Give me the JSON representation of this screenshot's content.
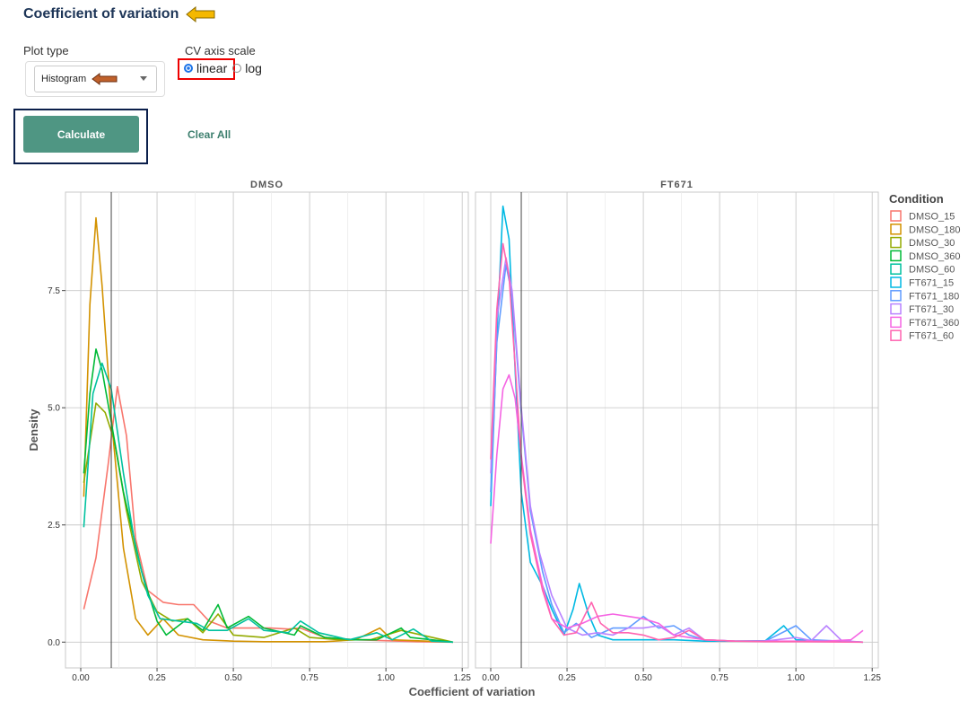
{
  "header": {
    "title": "Coefficient of variation",
    "arrow_color": "#f5b800"
  },
  "controls": {
    "plot_type_label": "Plot type",
    "plot_type_value": "Histogram",
    "plot_type_arrow_color": "#c0612b",
    "cv_scale_label": "CV axis scale",
    "cv_scale_options": [
      "linear",
      "log"
    ],
    "cv_scale_selected": "linear",
    "calculate_label": "Calculate",
    "clear_label": "Clear All"
  },
  "chart_data": {
    "type": "line",
    "title": "",
    "xlabel": "Coefficient of variation",
    "ylabel": "Density",
    "xlim": [
      -0.05,
      1.27
    ],
    "ylim": [
      -0.55,
      9.6
    ],
    "x_ticks": [
      "0.00",
      "0.25",
      "0.50",
      "0.75",
      "1.00",
      "1.25"
    ],
    "y_ticks": [
      "0.0",
      "2.5",
      "5.0",
      "7.5"
    ],
    "vline_x": 0.1,
    "legend": {
      "title": "Condition",
      "position": "right"
    },
    "panels": [
      {
        "name": "DMSO",
        "series": [
          {
            "name": "DMSO_15",
            "color": "#f8766d",
            "points": [
              [
                0.01,
                0.7
              ],
              [
                0.05,
                1.8
              ],
              [
                0.09,
                3.8
              ],
              [
                0.12,
                5.45
              ],
              [
                0.15,
                4.4
              ],
              [
                0.18,
                2.2
              ],
              [
                0.22,
                1.1
              ],
              [
                0.27,
                0.85
              ],
              [
                0.32,
                0.8
              ],
              [
                0.37,
                0.8
              ],
              [
                0.42,
                0.45
              ],
              [
                0.48,
                0.3
              ],
              [
                0.55,
                0.3
              ],
              [
                0.62,
                0.3
              ],
              [
                0.68,
                0.28
              ],
              [
                0.72,
                0.3
              ],
              [
                0.8,
                0.1
              ],
              [
                0.9,
                0.05
              ],
              [
                1.0,
                0.03
              ],
              [
                1.1,
                0.01
              ],
              [
                1.22,
                0
              ]
            ]
          },
          {
            "name": "DMSO_180",
            "color": "#d39200",
            "points": [
              [
                0.01,
                3.1
              ],
              [
                0.03,
                7.2
              ],
              [
                0.05,
                9.05
              ],
              [
                0.07,
                7.6
              ],
              [
                0.1,
                4.8
              ],
              [
                0.14,
                2.0
              ],
              [
                0.18,
                0.5
              ],
              [
                0.22,
                0.15
              ],
              [
                0.27,
                0.5
              ],
              [
                0.32,
                0.15
              ],
              [
                0.4,
                0.05
              ],
              [
                0.5,
                0.02
              ],
              [
                0.6,
                0.01
              ],
              [
                0.7,
                0.01
              ],
              [
                0.8,
                0.01
              ],
              [
                0.9,
                0.05
              ],
              [
                0.98,
                0.3
              ],
              [
                1.02,
                0.05
              ],
              [
                1.22,
                0
              ]
            ]
          },
          {
            "name": "DMSO_30",
            "color": "#93aa00",
            "points": [
              [
                0.01,
                3.4
              ],
              [
                0.05,
                5.1
              ],
              [
                0.08,
                4.9
              ],
              [
                0.11,
                4.3
              ],
              [
                0.15,
                2.8
              ],
              [
                0.2,
                1.3
              ],
              [
                0.25,
                0.65
              ],
              [
                0.3,
                0.45
              ],
              [
                0.35,
                0.5
              ],
              [
                0.4,
                0.2
              ],
              [
                0.45,
                0.6
              ],
              [
                0.5,
                0.15
              ],
              [
                0.6,
                0.1
              ],
              [
                0.7,
                0.3
              ],
              [
                0.75,
                0.1
              ],
              [
                0.85,
                0.05
              ],
              [
                0.95,
                0.05
              ],
              [
                1.05,
                0.25
              ],
              [
                1.22,
                0
              ]
            ]
          },
          {
            "name": "DMSO_360",
            "color": "#00ba38",
            "points": [
              [
                0.01,
                3.6
              ],
              [
                0.03,
                5.3
              ],
              [
                0.05,
                6.25
              ],
              [
                0.07,
                5.8
              ],
              [
                0.1,
                4.7
              ],
              [
                0.14,
                3.2
              ],
              [
                0.2,
                1.5
              ],
              [
                0.25,
                0.45
              ],
              [
                0.28,
                0.15
              ],
              [
                0.32,
                0.35
              ],
              [
                0.35,
                0.5
              ],
              [
                0.4,
                0.25
              ],
              [
                0.45,
                0.8
              ],
              [
                0.48,
                0.3
              ],
              [
                0.55,
                0.55
              ],
              [
                0.6,
                0.3
              ],
              [
                0.7,
                0.15
              ],
              [
                0.72,
                0.35
              ],
              [
                0.8,
                0.1
              ],
              [
                0.9,
                0.05
              ],
              [
                0.97,
                0.05
              ],
              [
                1.05,
                0.3
              ],
              [
                1.08,
                0.1
              ],
              [
                1.22,
                0
              ]
            ]
          },
          {
            "name": "DMSO_60",
            "color": "#00c19f",
            "points": [
              [
                0.01,
                2.45
              ],
              [
                0.04,
                5.3
              ],
              [
                0.07,
                5.95
              ],
              [
                0.1,
                5.4
              ],
              [
                0.14,
                3.6
              ],
              [
                0.18,
                2.0
              ],
              [
                0.22,
                1.0
              ],
              [
                0.26,
                0.5
              ],
              [
                0.32,
                0.45
              ],
              [
                0.38,
                0.4
              ],
              [
                0.42,
                0.25
              ],
              [
                0.48,
                0.25
              ],
              [
                0.55,
                0.5
              ],
              [
                0.6,
                0.25
              ],
              [
                0.68,
                0.2
              ],
              [
                0.72,
                0.45
              ],
              [
                0.78,
                0.2
              ],
              [
                0.88,
                0.05
              ],
              [
                0.97,
                0.2
              ],
              [
                1.02,
                0.05
              ],
              [
                1.09,
                0.28
              ],
              [
                1.15,
                0.02
              ],
              [
                1.22,
                0
              ]
            ]
          }
        ]
      },
      {
        "name": "FT671",
        "series": [
          {
            "name": "FT671_15",
            "color": "#00b9e3",
            "points": [
              [
                0.0,
                2.9
              ],
              [
                0.02,
                6.5
              ],
              [
                0.04,
                9.3
              ],
              [
                0.06,
                8.6
              ],
              [
                0.08,
                5.8
              ],
              [
                0.1,
                3.2
              ],
              [
                0.13,
                1.7
              ],
              [
                0.17,
                1.2
              ],
              [
                0.2,
                0.7
              ],
              [
                0.24,
                0.15
              ],
              [
                0.27,
                0.7
              ],
              [
                0.29,
                1.25
              ],
              [
                0.32,
                0.6
              ],
              [
                0.35,
                0.15
              ],
              [
                0.4,
                0.05
              ],
              [
                0.5,
                0.05
              ],
              [
                0.6,
                0.05
              ],
              [
                0.7,
                0.02
              ],
              [
                0.8,
                0.02
              ],
              [
                0.9,
                0.03
              ],
              [
                0.96,
                0.35
              ],
              [
                1.0,
                0.05
              ],
              [
                1.22,
                0
              ]
            ]
          },
          {
            "name": "FT671_180",
            "color": "#619cff",
            "points": [
              [
                0.0,
                3.2
              ],
              [
                0.02,
                6.4
              ],
              [
                0.05,
                8.05
              ],
              [
                0.07,
                7.4
              ],
              [
                0.1,
                4.9
              ],
              [
                0.13,
                2.8
              ],
              [
                0.17,
                1.5
              ],
              [
                0.2,
                0.8
              ],
              [
                0.24,
                0.2
              ],
              [
                0.28,
                0.4
              ],
              [
                0.33,
                0.1
              ],
              [
                0.4,
                0.3
              ],
              [
                0.45,
                0.3
              ],
              [
                0.5,
                0.55
              ],
              [
                0.55,
                0.3
              ],
              [
                0.6,
                0.35
              ],
              [
                0.65,
                0.15
              ],
              [
                0.7,
                0.05
              ],
              [
                0.8,
                0.02
              ],
              [
                0.9,
                0.02
              ],
              [
                1.0,
                0.35
              ],
              [
                1.05,
                0.05
              ],
              [
                1.22,
                0
              ]
            ]
          },
          {
            "name": "FT671_30",
            "color": "#b983ff",
            "points": [
              [
                0.0,
                3.6
              ],
              [
                0.02,
                6.9
              ],
              [
                0.05,
                8.2
              ],
              [
                0.07,
                7.5
              ],
              [
                0.1,
                5.0
              ],
              [
                0.13,
                2.9
              ],
              [
                0.16,
                1.9
              ],
              [
                0.2,
                1.0
              ],
              [
                0.25,
                0.3
              ],
              [
                0.3,
                0.15
              ],
              [
                0.35,
                0.2
              ],
              [
                0.4,
                0.15
              ],
              [
                0.45,
                0.3
              ],
              [
                0.5,
                0.3
              ],
              [
                0.55,
                0.35
              ],
              [
                0.6,
                0.15
              ],
              [
                0.65,
                0.3
              ],
              [
                0.7,
                0.05
              ],
              [
                0.8,
                0.02
              ],
              [
                0.9,
                0.02
              ],
              [
                1.0,
                0.1
              ],
              [
                1.05,
                0.03
              ],
              [
                1.1,
                0.35
              ],
              [
                1.15,
                0.03
              ],
              [
                1.22,
                0
              ]
            ]
          },
          {
            "name": "FT671_360",
            "color": "#f564e3",
            "points": [
              [
                0.0,
                2.1
              ],
              [
                0.02,
                4.0
              ],
              [
                0.04,
                5.4
              ],
              [
                0.06,
                5.7
              ],
              [
                0.08,
                5.2
              ],
              [
                0.1,
                4.0
              ],
              [
                0.13,
                2.4
              ],
              [
                0.17,
                1.2
              ],
              [
                0.2,
                0.5
              ],
              [
                0.25,
                0.3
              ],
              [
                0.3,
                0.4
              ],
              [
                0.35,
                0.55
              ],
              [
                0.4,
                0.6
              ],
              [
                0.45,
                0.55
              ],
              [
                0.5,
                0.5
              ],
              [
                0.55,
                0.4
              ],
              [
                0.6,
                0.15
              ],
              [
                0.65,
                0.1
              ],
              [
                0.7,
                0.05
              ],
              [
                0.8,
                0.02
              ],
              [
                0.9,
                0.02
              ],
              [
                1.0,
                0.02
              ],
              [
                1.1,
                0.02
              ],
              [
                1.18,
                0.05
              ],
              [
                1.22,
                0.25
              ]
            ]
          },
          {
            "name": "FT671_60",
            "color": "#ff64b0",
            "points": [
              [
                0.0,
                3.9
              ],
              [
                0.02,
                7.1
              ],
              [
                0.04,
                8.5
              ],
              [
                0.06,
                7.8
              ],
              [
                0.08,
                5.9
              ],
              [
                0.1,
                3.9
              ],
              [
                0.13,
                2.3
              ],
              [
                0.17,
                1.1
              ],
              [
                0.2,
                0.5
              ],
              [
                0.24,
                0.15
              ],
              [
                0.28,
                0.2
              ],
              [
                0.31,
                0.6
              ],
              [
                0.33,
                0.85
              ],
              [
                0.36,
                0.4
              ],
              [
                0.4,
                0.2
              ],
              [
                0.45,
                0.2
              ],
              [
                0.5,
                0.15
              ],
              [
                0.55,
                0.05
              ],
              [
                0.6,
                0.1
              ],
              [
                0.65,
                0.25
              ],
              [
                0.7,
                0.05
              ],
              [
                0.8,
                0.02
              ],
              [
                0.9,
                0.01
              ],
              [
                1.0,
                0.01
              ],
              [
                1.22,
                0
              ]
            ]
          }
        ]
      }
    ]
  }
}
